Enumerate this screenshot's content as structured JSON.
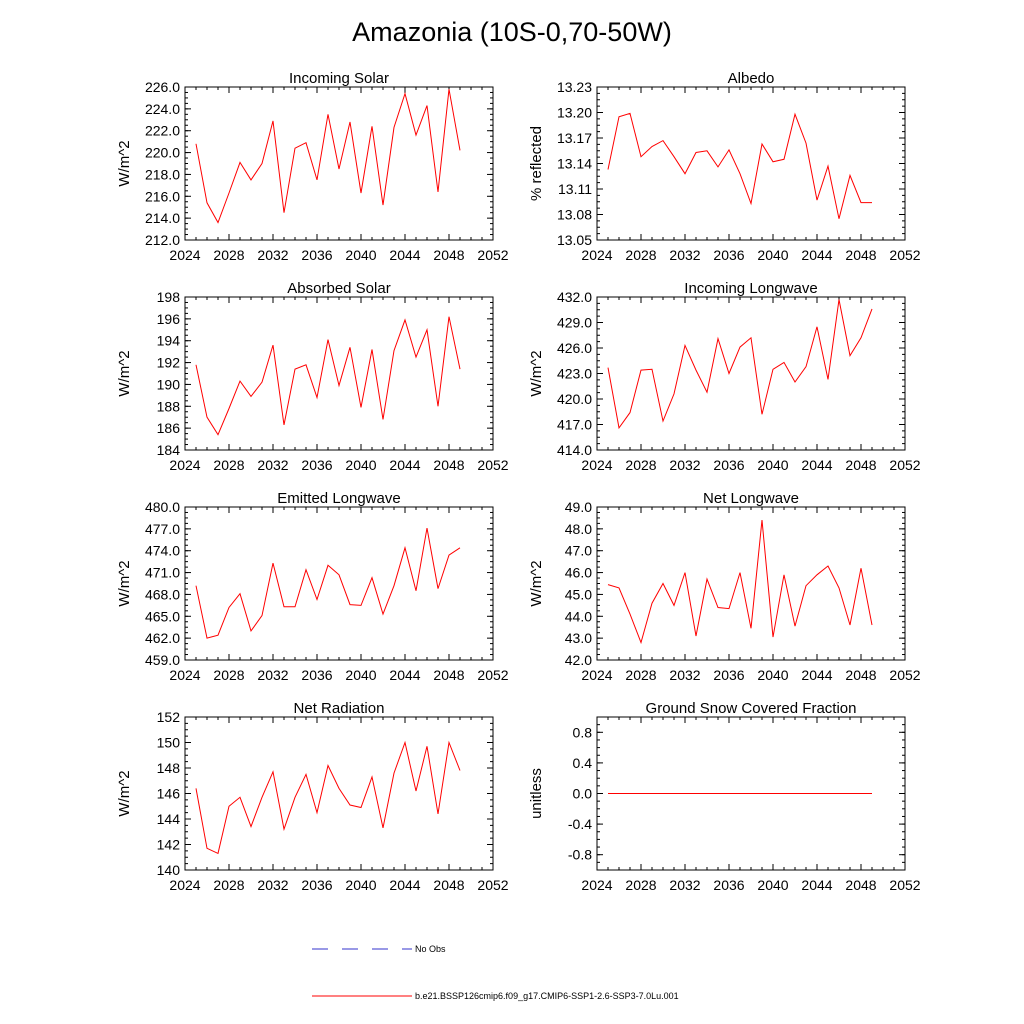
{
  "figure_title": "Amazonia (10S-0,70-50W)",
  "colors": {
    "model": "#ff0000",
    "obs": "#3333cc",
    "axis": "#000000"
  },
  "legend": [
    {
      "label": "No Obs",
      "color": "#3333cc",
      "style": "dashed"
    },
    {
      "label": "b.e21.BSSP126cmip6.f09_g17.CMIP6-SSP1-2.6-SSP3-7.0Lu.001",
      "color": "#ff0000",
      "style": "solid"
    }
  ],
  "chart_data": [
    {
      "type": "line",
      "title": "Incoming Solar",
      "ylabel": "W/m^2",
      "xlim": [
        2024,
        2052
      ],
      "ylim": [
        212,
        226
      ],
      "xticks": [
        2024,
        2028,
        2032,
        2036,
        2040,
        2044,
        2048,
        2052
      ],
      "yticks": [
        "212.0",
        "214.0",
        "216.0",
        "218.0",
        "220.0",
        "222.0",
        "224.0",
        "226.0"
      ],
      "x": [
        2025,
        2026,
        2027,
        2028,
        2029,
        2030,
        2031,
        2032,
        2033,
        2034,
        2035,
        2036,
        2037,
        2038,
        2039,
        2040,
        2041,
        2042,
        2043,
        2044,
        2045,
        2046,
        2047,
        2048,
        2049
      ],
      "series": [
        {
          "values": [
            220.8,
            215.4,
            213.6,
            216.3,
            219.1,
            217.5,
            219.0,
            222.9,
            214.5,
            220.4,
            220.9,
            217.5,
            223.5,
            218.5,
            222.8,
            216.3,
            222.4,
            215.2,
            222.3,
            225.4,
            221.6,
            224.3,
            216.4,
            225.8,
            220.2
          ]
        }
      ]
    },
    {
      "type": "line",
      "title": "Albedo",
      "ylabel": "% reflected",
      "xlim": [
        2024,
        2052
      ],
      "ylim": [
        13.05,
        13.23
      ],
      "xticks": [
        2024,
        2028,
        2032,
        2036,
        2040,
        2044,
        2048,
        2052
      ],
      "yticks": [
        "13.05",
        "13.08",
        "13.11",
        "13.14",
        "13.17",
        "13.20",
        "13.23"
      ],
      "x": [
        2025,
        2026,
        2027,
        2028,
        2029,
        2030,
        2031,
        2032,
        2033,
        2034,
        2035,
        2036,
        2037,
        2038,
        2039,
        2040,
        2041,
        2042,
        2043,
        2044,
        2045,
        2046,
        2047,
        2048,
        2049
      ],
      "series": [
        {
          "values": [
            13.133,
            13.195,
            13.199,
            13.148,
            13.16,
            13.167,
            13.148,
            13.128,
            13.153,
            13.155,
            13.136,
            13.156,
            13.128,
            13.093,
            13.163,
            13.142,
            13.145,
            13.198,
            13.164,
            13.097,
            13.137,
            13.075,
            13.126,
            13.094,
            13.094
          ]
        }
      ]
    },
    {
      "type": "line",
      "title": "Absorbed Solar",
      "ylabel": "W/m^2",
      "xlim": [
        2024,
        2052
      ],
      "ylim": [
        184,
        198
      ],
      "xticks": [
        2024,
        2028,
        2032,
        2036,
        2040,
        2044,
        2048,
        2052
      ],
      "yticks": [
        "184",
        "186",
        "188",
        "190",
        "192",
        "194",
        "196",
        "198"
      ],
      "x": [
        2025,
        2026,
        2027,
        2028,
        2029,
        2030,
        2031,
        2032,
        2033,
        2034,
        2035,
        2036,
        2037,
        2038,
        2039,
        2040,
        2041,
        2042,
        2043,
        2044,
        2045,
        2046,
        2047,
        2048,
        2049
      ],
      "series": [
        {
          "values": [
            191.8,
            187.0,
            185.4,
            187.8,
            190.3,
            188.9,
            190.2,
            193.6,
            186.3,
            191.4,
            191.8,
            188.8,
            194.1,
            189.9,
            193.4,
            187.9,
            193.2,
            186.8,
            193.1,
            195.9,
            192.5,
            195.0,
            188.0,
            196.2,
            191.4
          ]
        }
      ]
    },
    {
      "type": "line",
      "title": "Incoming Longwave",
      "ylabel": "W/m^2",
      "xlim": [
        2024,
        2052
      ],
      "ylim": [
        414,
        432
      ],
      "xticks": [
        2024,
        2028,
        2032,
        2036,
        2040,
        2044,
        2048,
        2052
      ],
      "yticks": [
        "414.0",
        "417.0",
        "420.0",
        "423.0",
        "426.0",
        "429.0",
        "432.0"
      ],
      "x": [
        2025,
        2026,
        2027,
        2028,
        2029,
        2030,
        2031,
        2032,
        2033,
        2034,
        2035,
        2036,
        2037,
        2038,
        2039,
        2040,
        2041,
        2042,
        2043,
        2044,
        2045,
        2046,
        2047,
        2048,
        2049
      ],
      "series": [
        {
          "values": [
            423.7,
            416.6,
            418.4,
            423.4,
            423.5,
            417.4,
            420.6,
            426.3,
            423.4,
            420.8,
            427.1,
            423.0,
            426.1,
            427.2,
            418.2,
            423.5,
            424.3,
            422.0,
            423.8,
            428.5,
            422.3,
            431.7,
            425.1,
            427.2,
            430.6
          ]
        }
      ]
    },
    {
      "type": "line",
      "title": "Emitted Longwave",
      "ylabel": "W/m^2",
      "xlim": [
        2024,
        2052
      ],
      "ylim": [
        459,
        480
      ],
      "xticks": [
        2024,
        2028,
        2032,
        2036,
        2040,
        2044,
        2048,
        2052
      ],
      "yticks": [
        "459.0",
        "462.0",
        "465.0",
        "468.0",
        "471.0",
        "474.0",
        "477.0",
        "480.0"
      ],
      "x": [
        2025,
        2026,
        2027,
        2028,
        2029,
        2030,
        2031,
        2032,
        2033,
        2034,
        2035,
        2036,
        2037,
        2038,
        2039,
        2040,
        2041,
        2042,
        2043,
        2044,
        2045,
        2046,
        2047,
        2048,
        2049
      ],
      "series": [
        {
          "values": [
            469.2,
            462.0,
            462.4,
            466.2,
            468.1,
            463.0,
            465.1,
            472.3,
            466.3,
            466.3,
            471.4,
            467.3,
            472.0,
            470.7,
            466.6,
            466.5,
            470.3,
            465.3,
            469.2,
            474.4,
            468.5,
            477.1,
            468.8,
            473.4,
            474.4
          ]
        }
      ]
    },
    {
      "type": "line",
      "title": "Net Longwave",
      "ylabel": "W/m^2",
      "xlim": [
        2024,
        2052
      ],
      "ylim": [
        42,
        49
      ],
      "xticks": [
        2024,
        2028,
        2032,
        2036,
        2040,
        2044,
        2048,
        2052
      ],
      "yticks": [
        "42.0",
        "43.0",
        "44.0",
        "45.0",
        "46.0",
        "47.0",
        "48.0",
        "49.0"
      ],
      "x": [
        2025,
        2026,
        2027,
        2028,
        2029,
        2030,
        2031,
        2032,
        2033,
        2034,
        2035,
        2036,
        2037,
        2038,
        2039,
        2040,
        2041,
        2042,
        2043,
        2044,
        2045,
        2046,
        2047,
        2048,
        2049
      ],
      "series": [
        {
          "values": [
            45.45,
            45.3,
            44.1,
            42.8,
            44.6,
            45.5,
            44.5,
            46.0,
            43.1,
            45.7,
            44.4,
            44.35,
            46.0,
            43.45,
            48.4,
            43.05,
            45.9,
            43.55,
            45.4,
            45.9,
            46.3,
            45.3,
            43.6,
            46.2,
            43.6
          ]
        }
      ]
    },
    {
      "type": "line",
      "title": "Net Radiation",
      "ylabel": "W/m^2",
      "xlim": [
        2024,
        2052
      ],
      "ylim": [
        140,
        152
      ],
      "xticks": [
        2024,
        2028,
        2032,
        2036,
        2040,
        2044,
        2048,
        2052
      ],
      "yticks": [
        "140",
        "142",
        "144",
        "146",
        "148",
        "150",
        "152"
      ],
      "x": [
        2025,
        2026,
        2027,
        2028,
        2029,
        2030,
        2031,
        2032,
        2033,
        2034,
        2035,
        2036,
        2037,
        2038,
        2039,
        2040,
        2041,
        2042,
        2043,
        2044,
        2045,
        2046,
        2047,
        2048,
        2049
      ],
      "series": [
        {
          "values": [
            146.4,
            141.7,
            141.3,
            145.0,
            145.7,
            143.4,
            145.7,
            147.7,
            143.2,
            145.7,
            147.5,
            144.5,
            148.2,
            146.4,
            145.1,
            144.9,
            147.3,
            143.3,
            147.6,
            150.0,
            146.2,
            149.7,
            144.4,
            150.0,
            147.8
          ]
        }
      ]
    },
    {
      "type": "line",
      "title": "Ground Snow Covered Fraction",
      "ylabel": "unitless",
      "xlim": [
        2024,
        2052
      ],
      "ylim": [
        -1.0,
        1.0
      ],
      "xticks": [
        2024,
        2028,
        2032,
        2036,
        2040,
        2044,
        2048,
        2052
      ],
      "yticks": [
        "-0.8",
        "-0.4",
        "0.0",
        "0.4",
        "0.8"
      ],
      "x": [
        2025,
        2026,
        2027,
        2028,
        2029,
        2030,
        2031,
        2032,
        2033,
        2034,
        2035,
        2036,
        2037,
        2038,
        2039,
        2040,
        2041,
        2042,
        2043,
        2044,
        2045,
        2046,
        2047,
        2048,
        2049
      ],
      "series": [
        {
          "values": [
            0,
            0,
            0,
            0,
            0,
            0,
            0,
            0,
            0,
            0,
            0,
            0,
            0,
            0,
            0,
            0,
            0,
            0,
            0,
            0,
            0,
            0,
            0,
            0,
            0
          ]
        }
      ]
    }
  ]
}
